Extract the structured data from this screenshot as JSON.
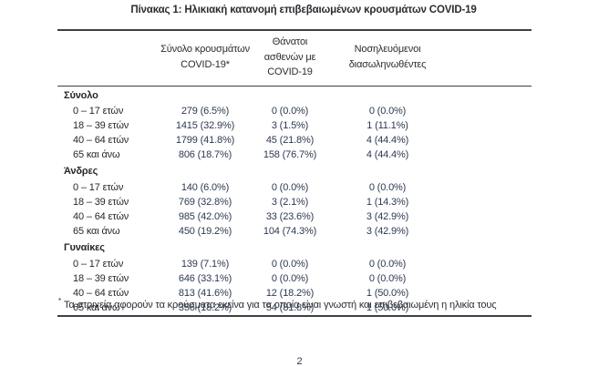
{
  "title": "Πίνακας 1: Ηλικιακή κατανομή επιβεβαιωμένων κρουσμάτων COVID-19",
  "table": {
    "headers": [
      {
        "line1": "Σύνολο κρουσμάτων",
        "line2": "COVID-19*"
      },
      {
        "line1": "Θάνατοι ασθενών με",
        "line2": "COVID-19"
      },
      {
        "line1": "Νοσηλευόμενοι",
        "line2": "διασωληνωθέντες"
      }
    ],
    "sections": [
      {
        "label": "Σύνολο",
        "rows": [
          {
            "age": "0 – 17 ετών",
            "cases": "279 (6.5%)",
            "deaths": "0 (0.0%)",
            "intubated": "0 (0.0%)"
          },
          {
            "age": "18 – 39 ετών",
            "cases": "1415 (32.9%)",
            "deaths": "3 (1.5%)",
            "intubated": "1 (11.1%)"
          },
          {
            "age": "40 – 64 ετών",
            "cases": "1799 (41.8%)",
            "deaths": "45 (21.8%)",
            "intubated": "4 (44.4%)"
          },
          {
            "age": "65 και άνω",
            "cases": "806 (18.7%)",
            "deaths": "158 (76.7%)",
            "intubated": "4 (44.4%)"
          }
        ]
      },
      {
        "label": "Άνδρες",
        "rows": [
          {
            "age": "0 – 17 ετών",
            "cases": "140 (6.0%)",
            "deaths": "0 (0.0%)",
            "intubated": "0 (0.0%)"
          },
          {
            "age": "18 – 39 ετών",
            "cases": "769 (32.8%)",
            "deaths": "3 (2.1%)",
            "intubated": "1 (14.3%)"
          },
          {
            "age": "40 – 64 ετών",
            "cases": "985 (42.0%)",
            "deaths": "33 (23.6%)",
            "intubated": "3 (42.9%)"
          },
          {
            "age": "65 και άνω",
            "cases": "450 (19.2%)",
            "deaths": "104 (74.3%)",
            "intubated": "3 (42.9%)"
          }
        ]
      },
      {
        "label": "Γυναίκες",
        "rows": [
          {
            "age": "0 – 17 ετών",
            "cases": "139 (7.1%)",
            "deaths": "0 (0.0%)",
            "intubated": "0 (0.0%)"
          },
          {
            "age": "18 – 39 ετών",
            "cases": "646 (33.1%)",
            "deaths": "0 (0.0%)",
            "intubated": "0 (0.0%)"
          },
          {
            "age": "40 – 64 ετών",
            "cases": "813 (41.6%)",
            "deaths": "12 (18.2%)",
            "intubated": "1 (50.0%)"
          },
          {
            "age": "65 και άνω",
            "cases": "356 (18.2%)",
            "deaths": "54 (81.8%)",
            "intubated": "1 (50.0%)"
          }
        ]
      }
    ]
  },
  "footnote": {
    "marker": "*",
    "text": "Τα στοιχεία αφορούν τα κρούσματα εκείνα για τα οποία είναι γνωστή και επιβεβαιωμένη η ηλικία τους"
  },
  "page_number": "2",
  "colors": {
    "text": "#2b2c31",
    "label_text": "#26272c",
    "value_text": "#2c3950",
    "border": "#3f4045",
    "background": "#ffffff"
  }
}
